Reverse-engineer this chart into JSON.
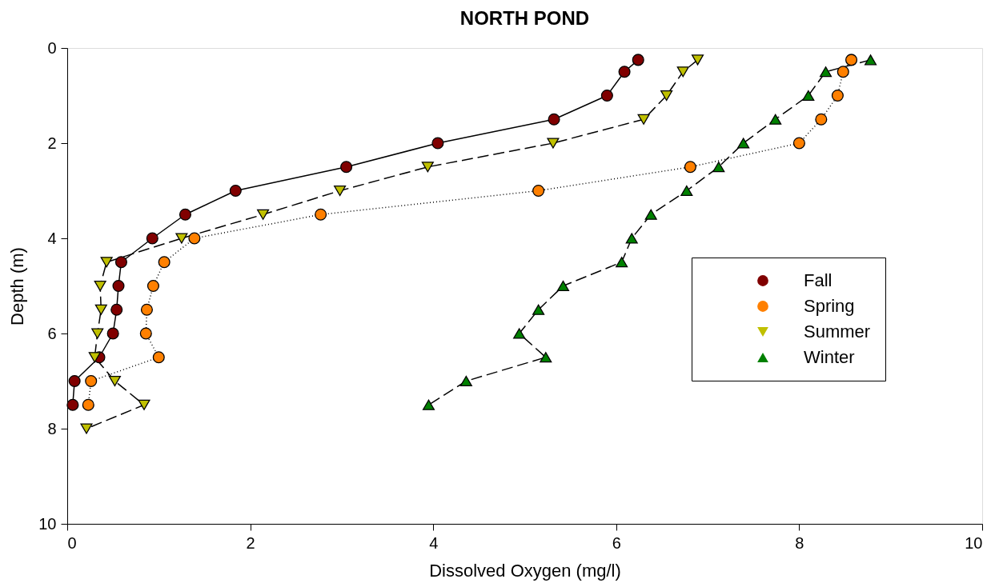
{
  "chart_data": {
    "type": "line",
    "title": "NORTH POND",
    "xlabel": "Dissolved Oxygen (mg/l)",
    "ylabel": "Depth (m)",
    "xlim": [
      0,
      10
    ],
    "xticks": [
      0,
      2,
      4,
      6,
      8,
      10
    ],
    "ylim": [
      10,
      0
    ],
    "yticks": [
      0,
      2,
      4,
      6,
      8,
      10
    ],
    "grid": false,
    "legend": "right",
    "series": [
      {
        "name": "Fall",
        "color": "#800000",
        "marker": "circle",
        "line_style": "solid",
        "x": [
          6.24,
          6.09,
          5.9,
          5.32,
          4.05,
          3.05,
          1.84,
          1.29,
          0.93,
          0.59,
          0.56,
          0.54,
          0.5,
          0.35,
          0.08,
          0.06
        ],
        "values": [
          0.25,
          0.5,
          1,
          1.5,
          2,
          2.5,
          3,
          3.5,
          4,
          4.5,
          5,
          5.5,
          6,
          6.5,
          7,
          7.5
        ]
      },
      {
        "name": "Spring",
        "color": "#ff8000",
        "marker": "circle",
        "line_style": "dotted",
        "x": [
          8.57,
          8.48,
          8.42,
          8.24,
          8.0,
          6.81,
          5.15,
          2.77,
          1.39,
          1.06,
          0.94,
          0.87,
          0.86,
          1.0,
          0.26,
          0.23
        ],
        "values": [
          0.25,
          0.5,
          1,
          1.5,
          2,
          2.5,
          3,
          3.5,
          4,
          4.5,
          5,
          5.5,
          6,
          6.5,
          7,
          7.5
        ]
      },
      {
        "name": "Summer",
        "color": "#c0c000",
        "marker": "triangle-down",
        "line_style": "dashed",
        "x": [
          6.89,
          6.73,
          6.55,
          6.3,
          5.31,
          3.94,
          2.98,
          2.14,
          1.25,
          0.43,
          0.36,
          0.37,
          0.33,
          0.3,
          0.52,
          0.84,
          0.21
        ],
        "values": [
          0.25,
          0.5,
          1,
          1.5,
          2,
          2.5,
          3,
          3.5,
          4,
          4.5,
          5,
          5.5,
          6,
          6.5,
          7,
          7.5,
          8
        ]
      },
      {
        "name": "Winter",
        "color": "#008000",
        "marker": "triangle",
        "line_style": "dashed",
        "x": [
          8.78,
          8.29,
          8.1,
          7.74,
          7.39,
          7.12,
          6.77,
          6.38,
          6.17,
          6.06,
          5.42,
          5.15,
          4.94,
          5.23,
          4.36,
          3.95
        ],
        "values": [
          0.25,
          0.5,
          1,
          1.5,
          2,
          2.5,
          3,
          3.5,
          4,
          4.5,
          5,
          5.5,
          6,
          6.5,
          7,
          7.5
        ]
      }
    ]
  }
}
